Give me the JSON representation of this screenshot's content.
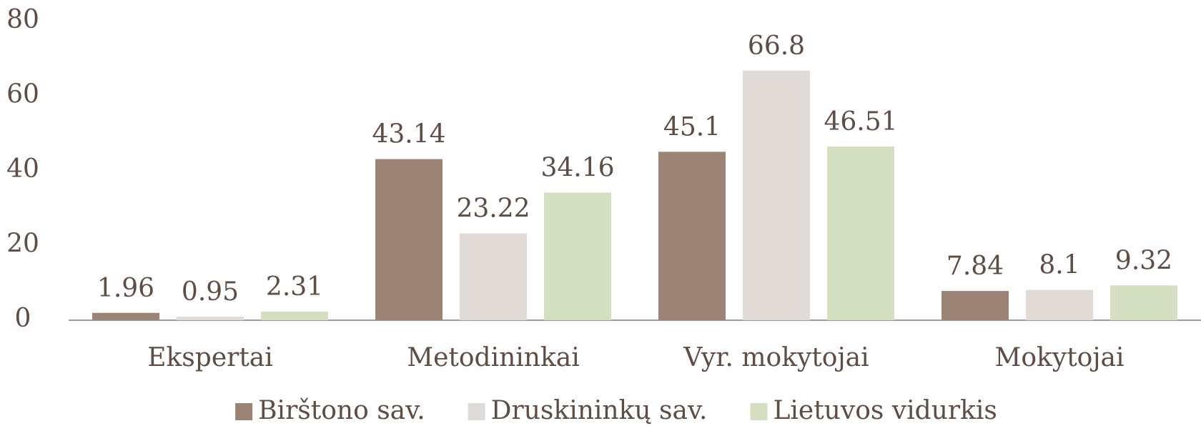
{
  "chart_data": {
    "type": "bar",
    "categories": [
      "Ekspertai",
      "Metodininkai",
      "Vyr. mokytojai",
      "Mokytojai"
    ],
    "series": [
      {
        "name": "Birštono sav.",
        "color": "#9b8476",
        "values": [
          1.96,
          43.14,
          45.1,
          7.84
        ]
      },
      {
        "name": "Druskininkų sav.",
        "color": "#e0dbd7",
        "values": [
          0.95,
          23.22,
          66.8,
          8.1
        ]
      },
      {
        "name": "Lietuvos vidurkis",
        "color": "#d3dfc0",
        "values": [
          2.31,
          34.16,
          46.51,
          9.32
        ]
      }
    ],
    "ylim": [
      0,
      80
    ],
    "yticks": [
      0,
      20,
      40,
      60,
      80
    ],
    "grid": false,
    "legend": "bottom"
  }
}
